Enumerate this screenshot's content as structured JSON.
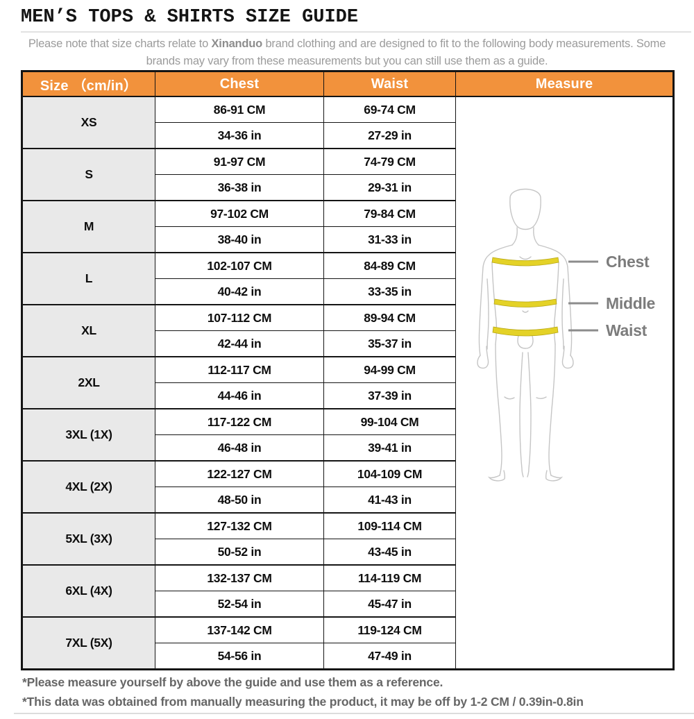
{
  "header": {
    "title": "MEN’S TOPS & SHIRTS SIZE GUIDE",
    "note_before_brand": "Please note that size charts relate to ",
    "brand": "Xinanduo",
    "note_after_brand": " brand clothing and are designed to fit to the following body measurements. Some brands may vary from these measurements but you can still use them as a guide."
  },
  "table": {
    "columns": {
      "size": "Size （cm/in）",
      "chest": "Chest",
      "waist": "Waist",
      "measure": "Measure"
    },
    "sizes": [
      {
        "label": "XS",
        "chest_cm": "86-91 CM",
        "chest_in": "34-36 in",
        "waist_cm": "69-74 CM",
        "waist_in": "27-29 in"
      },
      {
        "label": "S",
        "chest_cm": "91-97 CM",
        "chest_in": "36-38 in",
        "waist_cm": "74-79 CM",
        "waist_in": "29-31 in"
      },
      {
        "label": "M",
        "chest_cm": "97-102 CM",
        "chest_in": "38-40 in",
        "waist_cm": "79-84 CM",
        "waist_in": "31-33 in"
      },
      {
        "label": "L",
        "chest_cm": "102-107 CM",
        "chest_in": "40-42 in",
        "waist_cm": "84-89 CM",
        "waist_in": "33-35 in"
      },
      {
        "label": "XL",
        "chest_cm": "107-112 CM",
        "chest_in": "42-44 in",
        "waist_cm": "89-94 CM",
        "waist_in": "35-37 in"
      },
      {
        "label": "2XL",
        "chest_cm": "112-117 CM",
        "chest_in": "44-46 in",
        "waist_cm": "94-99 CM",
        "waist_in": "37-39 in"
      },
      {
        "label": "3XL (1X)",
        "chest_cm": "117-122 CM",
        "chest_in": "46-48 in",
        "waist_cm": "99-104 CM",
        "waist_in": "39-41 in"
      },
      {
        "label": "4XL (2X)",
        "chest_cm": "122-127 CM",
        "chest_in": "48-50 in",
        "waist_cm": "104-109 CM",
        "waist_in": "41-43 in"
      },
      {
        "label": "5XL (3X)",
        "chest_cm": "127-132 CM",
        "chest_in": "50-52 in",
        "waist_cm": "109-114 CM",
        "waist_in": "43-45 in"
      },
      {
        "label": "6XL (4X)",
        "chest_cm": "132-137 CM",
        "chest_in": "52-54 in",
        "waist_cm": "114-119 CM",
        "waist_in": "45-47 in"
      },
      {
        "label": "7XL (5X)",
        "chest_cm": "137-142 CM",
        "chest_in": "54-56 in",
        "waist_cm": "119-124 CM",
        "waist_in": "47-49 in"
      }
    ]
  },
  "measure_diagram": {
    "labels": {
      "chest": "Chest",
      "middle": "Middle",
      "waist": "Waist"
    }
  },
  "footnotes": {
    "line1": "*Please measure yourself by above the guide and use them as a reference.",
    "line2": "*This data was obtained from manually measuring the product, it may be off by 1-2 CM / 0.39in-0.8in"
  },
  "colors": {
    "header_bg": "#F2923C",
    "size_cell_bg": "#E9E9E9",
    "band_yellow": "#E4D227",
    "border_black": "#141414",
    "note_gray": "#9B9B9B",
    "footnote_gray": "#666666",
    "figure_outline": "#C5C5C5"
  }
}
